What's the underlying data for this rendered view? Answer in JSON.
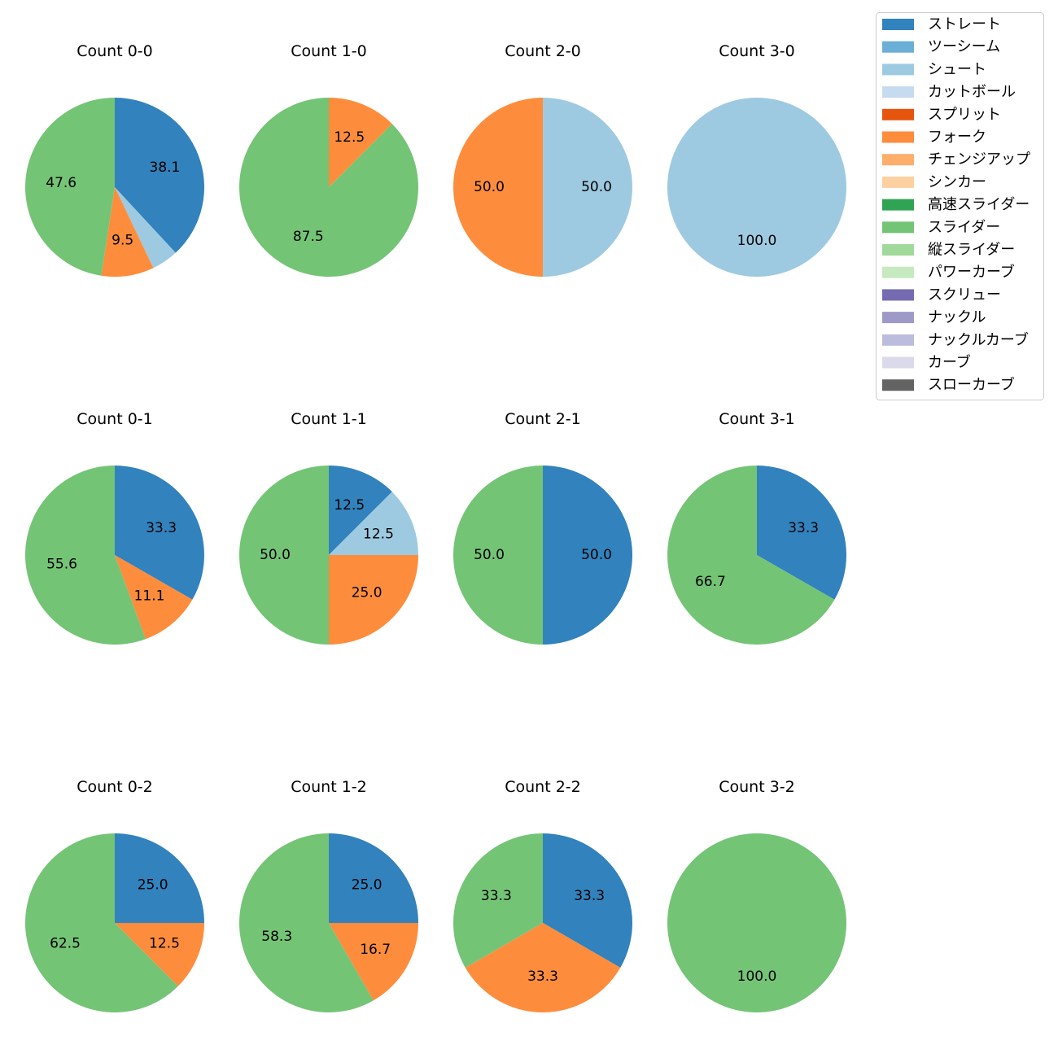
{
  "chart_data": {
    "type": "pie",
    "legend_placement": "top-right",
    "categories": [
      {
        "name": "ストレート",
        "color": "#3182bd"
      },
      {
        "name": "ツーシーム",
        "color": "#6baed6"
      },
      {
        "name": "シュート",
        "color": "#9ecae1"
      },
      {
        "name": "カットボール",
        "color": "#c6dbef"
      },
      {
        "name": "スプリット",
        "color": "#e6550d"
      },
      {
        "name": "フォーク",
        "color": "#fd8d3c"
      },
      {
        "name": "チェンジアップ",
        "color": "#fdae6b"
      },
      {
        "name": "シンカー",
        "color": "#fdd0a2"
      },
      {
        "name": "高速スライダー",
        "color": "#31a354"
      },
      {
        "name": "スライダー",
        "color": "#74c476"
      },
      {
        "name": "縦スライダー",
        "color": "#a1d99b"
      },
      {
        "name": "パワーカーブ",
        "color": "#c7e9c0"
      },
      {
        "name": "スクリュー",
        "color": "#756bb1"
      },
      {
        "name": "ナックル",
        "color": "#9e9ac8"
      },
      {
        "name": "ナックルカーブ",
        "color": "#bcbddc"
      },
      {
        "name": "カーブ",
        "color": "#dadaeb"
      },
      {
        "name": "スローカーブ",
        "color": "#636363"
      }
    ],
    "charts": [
      {
        "title": "Count 0-0",
        "slices": [
          {
            "category": "ストレート",
            "value": 38.1,
            "label": "38.1"
          },
          {
            "category": "シュート",
            "value": 4.8,
            "label": ""
          },
          {
            "category": "フォーク",
            "value": 9.5,
            "label": "9.5"
          },
          {
            "category": "スライダー",
            "value": 47.6,
            "label": "47.6"
          }
        ]
      },
      {
        "title": "Count 1-0",
        "slices": [
          {
            "category": "フォーク",
            "value": 12.5,
            "label": "12.5"
          },
          {
            "category": "スライダー",
            "value": 87.5,
            "label": "87.5"
          }
        ]
      },
      {
        "title": "Count 2-0",
        "slices": [
          {
            "category": "シュート",
            "value": 50.0,
            "label": "50.0"
          },
          {
            "category": "フォーク",
            "value": 50.0,
            "label": "50.0"
          }
        ]
      },
      {
        "title": "Count 3-0",
        "slices": [
          {
            "category": "シュート",
            "value": 100.0,
            "label": "100.0"
          }
        ]
      },
      {
        "title": "Count 0-1",
        "slices": [
          {
            "category": "ストレート",
            "value": 33.3,
            "label": "33.3"
          },
          {
            "category": "フォーク",
            "value": 11.1,
            "label": "11.1"
          },
          {
            "category": "スライダー",
            "value": 55.6,
            "label": "55.6"
          }
        ]
      },
      {
        "title": "Count 1-1",
        "slices": [
          {
            "category": "ストレート",
            "value": 12.5,
            "label": "12.5"
          },
          {
            "category": "シュート",
            "value": 12.5,
            "label": "12.5"
          },
          {
            "category": "フォーク",
            "value": 25.0,
            "label": "25.0"
          },
          {
            "category": "スライダー",
            "value": 50.0,
            "label": "50.0"
          }
        ]
      },
      {
        "title": "Count 2-1",
        "slices": [
          {
            "category": "ストレート",
            "value": 50.0,
            "label": "50.0"
          },
          {
            "category": "スライダー",
            "value": 50.0,
            "label": "50.0"
          }
        ]
      },
      {
        "title": "Count 3-1",
        "slices": [
          {
            "category": "ストレート",
            "value": 33.3,
            "label": "33.3"
          },
          {
            "category": "スライダー",
            "value": 66.7,
            "label": "66.7"
          }
        ]
      },
      {
        "title": "Count 0-2",
        "slices": [
          {
            "category": "ストレート",
            "value": 25.0,
            "label": "25.0"
          },
          {
            "category": "フォーク",
            "value": 12.5,
            "label": "12.5"
          },
          {
            "category": "スライダー",
            "value": 62.5,
            "label": "62.5"
          }
        ]
      },
      {
        "title": "Count 1-2",
        "slices": [
          {
            "category": "ストレート",
            "value": 25.0,
            "label": "25.0"
          },
          {
            "category": "フォーク",
            "value": 16.7,
            "label": "16.7"
          },
          {
            "category": "スライダー",
            "value": 58.3,
            "label": "58.3"
          }
        ]
      },
      {
        "title": "Count 2-2",
        "slices": [
          {
            "category": "ストレート",
            "value": 33.3,
            "label": "33.3"
          },
          {
            "category": "フォーク",
            "value": 33.3,
            "label": "33.3"
          },
          {
            "category": "スライダー",
            "value": 33.3,
            "label": "33.3"
          }
        ]
      },
      {
        "title": "Count 3-2",
        "slices": [
          {
            "category": "スライダー",
            "value": 100.0,
            "label": "100.0"
          }
        ]
      }
    ]
  }
}
